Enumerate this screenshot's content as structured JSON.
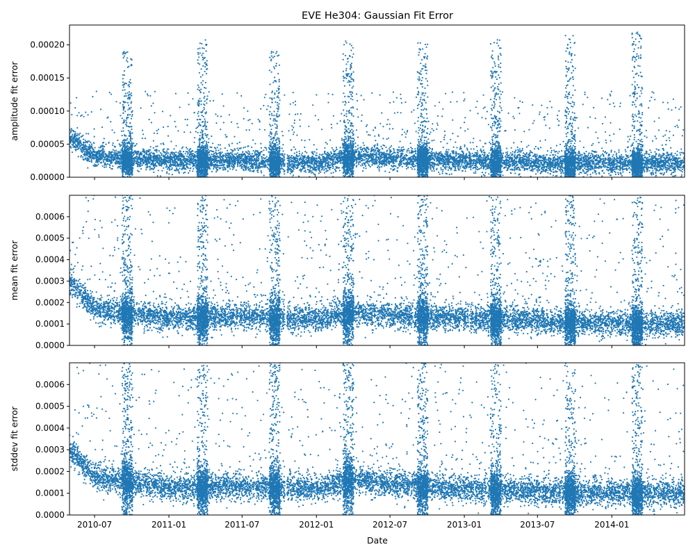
{
  "chart_data": {
    "type": "scatter",
    "title": "EVE He304: Gaussian Fit Error",
    "xlabel": "Date",
    "x_ticks": [
      "2010-07",
      "2011-01",
      "2011-07",
      "2012-01",
      "2012-07",
      "2013-01",
      "2013-07",
      "2014-01"
    ],
    "xlim": [
      "2010-04-30",
      "2014-06-30"
    ],
    "marker_color": "#1f77b4",
    "data_gap": [
      "2011-10-15",
      "2011-10-20"
    ],
    "panels": [
      {
        "ylabel": "amplitude fit error",
        "ylim": [
          0,
          0.00023
        ],
        "y_ticks": [
          "0.00000",
          "0.00005",
          "0.00010",
          "0.00015",
          "0.00020"
        ],
        "y_tick_values": [
          0,
          5e-05,
          0.0001,
          0.00015,
          0.0002
        ],
        "baseline_trend": [
          {
            "date": "2010-05-01",
            "value": 6e-05
          },
          {
            "date": "2010-07-01",
            "value": 3.1e-05
          },
          {
            "date": "2011-01-01",
            "value": 2.5e-05
          },
          {
            "date": "2011-07-01",
            "value": 2.5e-05
          },
          {
            "date": "2012-01-01",
            "value": 2.1e-05
          },
          {
            "date": "2012-04-01",
            "value": 3.3e-05
          },
          {
            "date": "2012-07-01",
            "value": 2.8e-05
          },
          {
            "date": "2013-01-01",
            "value": 2.5e-05
          },
          {
            "date": "2013-07-01",
            "value": 2.2e-05
          },
          {
            "date": "2014-01-01",
            "value": 2.1e-05
          },
          {
            "date": "2014-06-30",
            "value": 2.1e-05
          }
        ],
        "spread": 8e-06,
        "outlier_max": 0.00013,
        "eclipse_seasons": [
          {
            "date": "2010-09-20",
            "peak": 0.00019
          },
          {
            "date": "2011-03-25",
            "peak": 0.00021
          },
          {
            "date": "2011-09-20",
            "peak": 0.00019
          },
          {
            "date": "2012-03-20",
            "peak": 0.00021
          },
          {
            "date": "2012-09-20",
            "peak": 0.000205
          },
          {
            "date": "2013-03-20",
            "peak": 0.000215
          },
          {
            "date": "2013-09-20",
            "peak": 0.000215
          },
          {
            "date": "2014-03-05",
            "peak": 0.00022
          }
        ]
      },
      {
        "ylabel": "mean fit error",
        "ylim": [
          0,
          0.0007
        ],
        "y_ticks": [
          "0.0000",
          "0.0001",
          "0.0002",
          "0.0003",
          "0.0004",
          "0.0005",
          "0.0006"
        ],
        "y_tick_values": [
          0,
          0.0001,
          0.0002,
          0.0003,
          0.0004,
          0.0005,
          0.0006
        ],
        "baseline_trend": [
          {
            "date": "2010-05-01",
            "value": 0.0003
          },
          {
            "date": "2010-07-01",
            "value": 0.00017
          },
          {
            "date": "2011-01-01",
            "value": 0.000125
          },
          {
            "date": "2011-07-01",
            "value": 0.000135
          },
          {
            "date": "2012-01-01",
            "value": 0.00012
          },
          {
            "date": "2012-04-01",
            "value": 0.000155
          },
          {
            "date": "2012-07-01",
            "value": 0.00014
          },
          {
            "date": "2013-01-01",
            "value": 0.000125
          },
          {
            "date": "2013-07-01",
            "value": 0.000115
          },
          {
            "date": "2014-01-01",
            "value": 0.0001
          },
          {
            "date": "2014-06-30",
            "value": 0.0001
          }
        ],
        "spread": 3e-05,
        "outlier_max": 0.0007,
        "eclipse_seasons": [
          {
            "date": "2010-09-20",
            "peak": 0.0007
          },
          {
            "date": "2011-03-25",
            "peak": 0.0007
          },
          {
            "date": "2011-09-20",
            "peak": 0.0007
          },
          {
            "date": "2012-03-20",
            "peak": 0.0007
          },
          {
            "date": "2012-09-20",
            "peak": 0.0007
          },
          {
            "date": "2013-03-20",
            "peak": 0.0007
          },
          {
            "date": "2013-09-20",
            "peak": 0.0007
          },
          {
            "date": "2014-03-05",
            "peak": 0.0007
          }
        ]
      },
      {
        "ylabel": "stddev fit error",
        "ylim": [
          0,
          0.0007
        ],
        "y_ticks": [
          "0.0000",
          "0.0001",
          "0.0002",
          "0.0003",
          "0.0004",
          "0.0005",
          "0.0006"
        ],
        "y_tick_values": [
          0,
          0.0001,
          0.0002,
          0.0003,
          0.0004,
          0.0005,
          0.0006
        ],
        "baseline_trend": [
          {
            "date": "2010-05-01",
            "value": 0.0003
          },
          {
            "date": "2010-07-01",
            "value": 0.000175
          },
          {
            "date": "2011-01-01",
            "value": 0.000125
          },
          {
            "date": "2011-07-01",
            "value": 0.00013
          },
          {
            "date": "2012-01-01",
            "value": 0.00012
          },
          {
            "date": "2012-04-01",
            "value": 0.000165
          },
          {
            "date": "2012-07-01",
            "value": 0.00014
          },
          {
            "date": "2013-01-01",
            "value": 0.00012
          },
          {
            "date": "2013-07-01",
            "value": 0.00011
          },
          {
            "date": "2014-01-01",
            "value": 0.0001
          },
          {
            "date": "2014-06-30",
            "value": 0.0001
          }
        ],
        "spread": 3e-05,
        "outlier_max": 0.0007,
        "eclipse_seasons": [
          {
            "date": "2010-09-20",
            "peak": 0.0007
          },
          {
            "date": "2011-03-25",
            "peak": 0.0007
          },
          {
            "date": "2011-09-20",
            "peak": 0.0007
          },
          {
            "date": "2012-03-20",
            "peak": 0.0007
          },
          {
            "date": "2012-09-20",
            "peak": 0.0007
          },
          {
            "date": "2013-03-20",
            "peak": 0.0007
          },
          {
            "date": "2013-09-20",
            "peak": 0.0007
          },
          {
            "date": "2014-03-05",
            "peak": 0.0007
          }
        ]
      }
    ]
  }
}
